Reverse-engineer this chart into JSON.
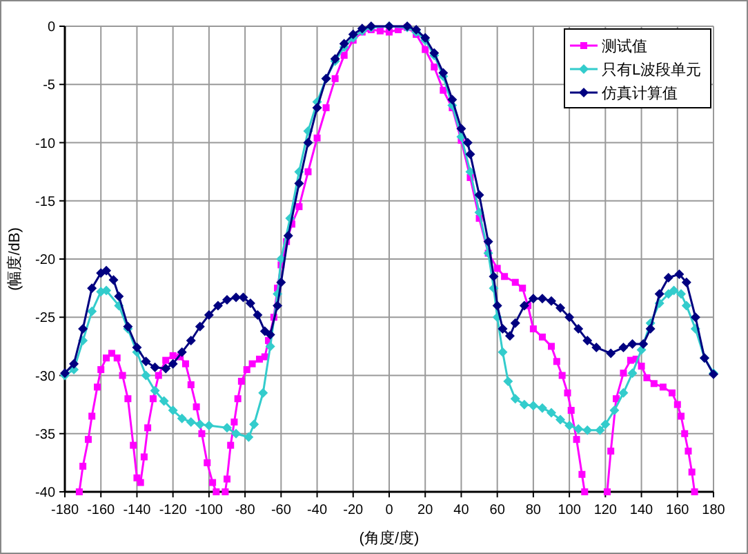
{
  "chart_data": {
    "type": "line",
    "xlabel": "(角度/度)",
    "ylabel": "(幅度/dB)",
    "xlim": [
      -180,
      180
    ],
    "xticks": [
      -180,
      -160,
      -140,
      -120,
      -100,
      -80,
      -60,
      -40,
      -20,
      0,
      20,
      40,
      60,
      80,
      100,
      120,
      140,
      160,
      180
    ],
    "ylim": [
      -40,
      0
    ],
    "yticks": [
      -40,
      -35,
      -30,
      -25,
      -20,
      -15,
      -10,
      -5,
      0
    ],
    "grid": true,
    "legend": "top right",
    "series": [
      {
        "name": "测试值",
        "color": "#ff00ff",
        "marker": "square",
        "x": [
          -172,
          -170,
          -167,
          -165,
          -162,
          -160,
          -157,
          -154,
          -151,
          -148,
          -145,
          -142,
          -140,
          -138,
          -136,
          -134,
          -131,
          -128,
          -124,
          -120,
          -116,
          -113,
          -110,
          -107,
          -104,
          -101,
          -98,
          -96,
          -93,
          -91,
          -90,
          -88,
          -86,
          -84,
          -82,
          -79,
          -76,
          -72,
          -69,
          -67,
          -64,
          -62,
          -60,
          -57,
          -54,
          -50,
          -45,
          -40,
          -35,
          -30,
          -25,
          -20,
          -15,
          -10,
          -5,
          0,
          5,
          10,
          15,
          20,
          25,
          30,
          35,
          40,
          45,
          50,
          55,
          60,
          64,
          70,
          74,
          77,
          80,
          85,
          90,
          93,
          96,
          99,
          101,
          104,
          107,
          108.5,
          115,
          121,
          123,
          126,
          130,
          134,
          137,
          140,
          143,
          147,
          152,
          157,
          160,
          162,
          164,
          166,
          168,
          169.5
        ],
        "values": [
          -40,
          -37.8,
          -35.5,
          -33.5,
          -31,
          -29.5,
          -28.5,
          -28.1,
          -28.5,
          -30,
          -32,
          -36,
          -38.8,
          -39.2,
          -37,
          -34.5,
          -32,
          -30,
          -28.7,
          -28.3,
          -28.4,
          -29,
          -30.8,
          -32.7,
          -35,
          -37.5,
          -39.2,
          -40,
          null,
          -40,
          -38.9,
          -36,
          -34,
          -32,
          -30.5,
          -29.5,
          -29,
          -28.6,
          -28.4,
          -27,
          -25,
          -22.5,
          -20.5,
          -18.5,
          -17,
          -15.5,
          -12.5,
          -9.6,
          -7,
          -4.5,
          -2.5,
          -1.2,
          -0.5,
          -0.3,
          -0.4,
          -0.5,
          -0.3,
          -0.1,
          -0.7,
          -2,
          -3.5,
          -5.5,
          -7,
          -9.8,
          -13,
          -16.5,
          -19.5,
          -20.8,
          -21.5,
          -22,
          -22.5,
          -24,
          -26,
          -26.7,
          -27.5,
          -28.8,
          -30,
          -31.5,
          -33,
          -35.5,
          -38.5,
          -40,
          null,
          -40,
          -36.5,
          -32,
          -29.8,
          -28.7,
          -28.6,
          -29.2,
          -30.2,
          -30.7,
          -31,
          -31.5,
          -32.5,
          -33.5,
          -35,
          -36.5,
          -38.3,
          -40
        ]
      },
      {
        "name": "只有L波段单元",
        "color": "#33cccc",
        "marker": "diamond",
        "x": [
          -180,
          -175,
          -170,
          -165,
          -160,
          -157,
          -150,
          -145,
          -140,
          -135,
          -130,
          -125,
          -120,
          -115,
          -110,
          -105,
          -100,
          -90,
          -85,
          -78,
          -75,
          -70,
          -66,
          -62,
          -60,
          -55,
          -50,
          -45,
          -40,
          -35,
          -30,
          -25,
          -20,
          -15,
          -10,
          0,
          10,
          15,
          20,
          25,
          30,
          35,
          40,
          45,
          50,
          55,
          58,
          60,
          63,
          66,
          70,
          75,
          80,
          85,
          90,
          95,
          100,
          105,
          110,
          117,
          120,
          125,
          130,
          135,
          140,
          145,
          150,
          155,
          158,
          162,
          165,
          170,
          175,
          180
        ],
        "values": [
          -30,
          -29.5,
          -27,
          -24.5,
          -22.8,
          -22.7,
          -24,
          -26,
          -28,
          -30,
          -31.3,
          -32.2,
          -33,
          -33.7,
          -34,
          -34.2,
          -34.3,
          -34.5,
          -35,
          -35.3,
          -34.2,
          -31.5,
          -27.5,
          -23,
          -20,
          -16.5,
          -12.5,
          -9,
          -6.5,
          -4.5,
          -3,
          -1.8,
          -1,
          -0.4,
          -0.1,
          0,
          -0.1,
          -0.5,
          -1.2,
          -2.5,
          -4.3,
          -6.8,
          -9.5,
          -12.5,
          -16,
          -19.5,
          -22.5,
          -25,
          -28,
          -30.5,
          -32,
          -32.5,
          -32.6,
          -32.8,
          -33.2,
          -33.8,
          -34.3,
          -34.6,
          -34.7,
          -34.7,
          -34.2,
          -33,
          -31.5,
          -29.8,
          -27.8,
          -25.5,
          -23.8,
          -23,
          -22.7,
          -23,
          -24,
          -26,
          -28.5,
          -29.8
        ]
      },
      {
        "name": "仿真计算值",
        "color": "#000080",
        "marker": "diamond",
        "x": [
          -180,
          -175,
          -170,
          -165,
          -160,
          -157,
          -153,
          -150,
          -145,
          -140,
          -135,
          -130,
          -124,
          -120,
          -115,
          -110,
          -105,
          -100,
          -95,
          -90,
          -85,
          -81,
          -77,
          -73,
          -69,
          -66,
          -62,
          -60,
          -56,
          -50,
          -45,
          -40,
          -35,
          -30,
          -25,
          -20,
          -15,
          -10,
          0,
          10,
          15,
          20,
          25,
          30,
          35,
          40,
          43.6,
          45,
          50,
          55,
          58,
          60,
          63,
          67,
          70,
          75,
          80,
          85,
          90,
          95,
          100,
          105,
          110,
          115,
          123,
          130,
          135,
          141,
          145,
          150,
          155,
          161,
          165,
          170,
          175,
          180
        ],
        "values": [
          -29.8,
          -29,
          -26,
          -22.5,
          -21.2,
          -21,
          -21.8,
          -23.2,
          -25.8,
          -27.6,
          -28.8,
          -29.3,
          -29.4,
          -29,
          -28,
          -27,
          -25.8,
          -24.8,
          -24,
          -23.5,
          -23.3,
          -23.3,
          -23.8,
          -24.8,
          -26.2,
          -26.5,
          -24,
          -22,
          -18,
          -13.5,
          -10,
          -7,
          -4.5,
          -2.8,
          -1.5,
          -0.7,
          -0.2,
          0,
          0,
          0,
          -0.3,
          -1,
          -2.3,
          -4,
          -6.3,
          -8.8,
          -10,
          -11,
          -14.5,
          -18.5,
          -21.5,
          -24,
          -26,
          -26.6,
          -25.5,
          -24,
          -23.4,
          -23.4,
          -23.6,
          -24.2,
          -25,
          -26,
          -27,
          -27.6,
          -28.1,
          -27.6,
          -27.3,
          -27.3,
          -26,
          -23,
          -21.6,
          -21.3,
          -22,
          -25,
          -28.5,
          -29.9
        ]
      }
    ]
  }
}
